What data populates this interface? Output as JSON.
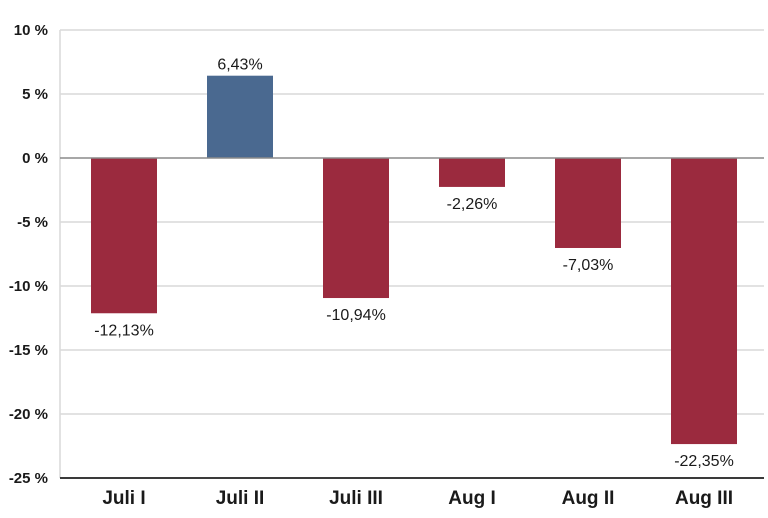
{
  "chart_data": {
    "type": "bar",
    "categories": [
      "Juli I",
      "Juli II",
      "Juli III",
      "Aug I",
      "Aug II",
      "Aug III"
    ],
    "values": [
      -12.13,
      6.43,
      -10.94,
      -2.26,
      -7.03,
      -22.35
    ],
    "data_labels": [
      "-12,13%",
      "6,43%",
      "-10,94%",
      "-2,26%",
      "-7,03%",
      "-22,35%"
    ],
    "y_ticks": [
      10,
      5,
      0,
      -5,
      -10,
      -15,
      -20,
      -25
    ],
    "y_tick_labels": [
      "10 %",
      "5 %",
      "0 %",
      "-5 %",
      "-10 %",
      "-15 %",
      "-20 %",
      "-25 %"
    ],
    "ylim": [
      -25,
      10
    ],
    "grid": true,
    "legend": "none",
    "colors": {
      "positive": "#4a6990",
      "negative": "#9b2a3e"
    }
  }
}
